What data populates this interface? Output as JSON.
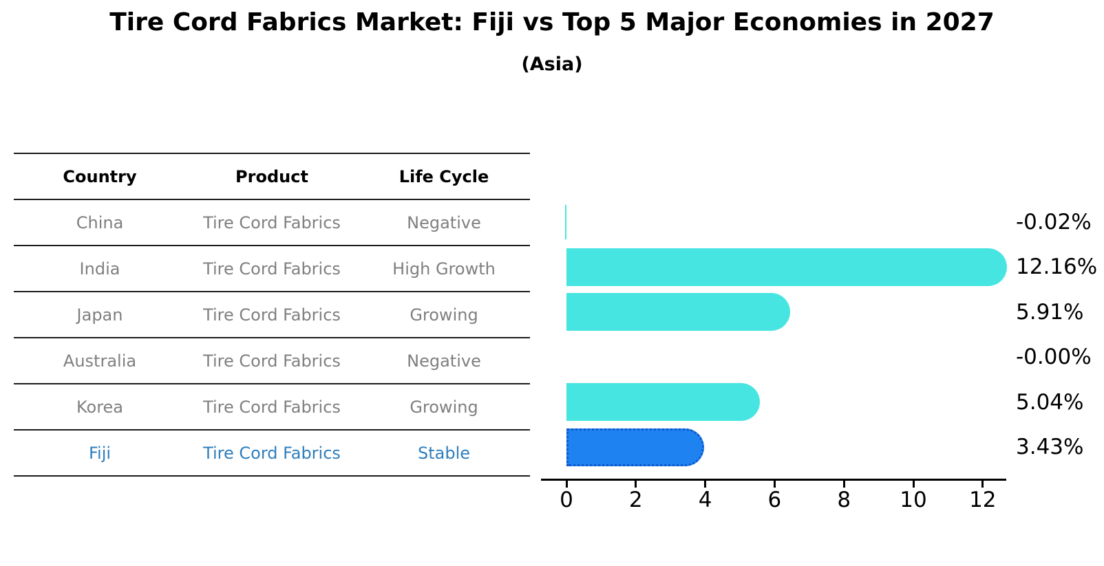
{
  "title": "Tire Cord Fabrics Market: Fiji vs Top 5 Major Economies in 2027",
  "subtitle": "(Asia)",
  "table": {
    "headers": [
      "Country",
      "Product",
      "Life Cycle"
    ],
    "rows": [
      {
        "country": "China",
        "product": "Tire Cord Fabrics",
        "life_cycle": "Negative",
        "highlight": false
      },
      {
        "country": "India",
        "product": "Tire Cord Fabrics",
        "life_cycle": "High Growth",
        "highlight": false
      },
      {
        "country": "Japan",
        "product": "Tire Cord Fabrics",
        "life_cycle": "Growing",
        "highlight": false
      },
      {
        "country": "Australia",
        "product": "Tire Cord Fabrics",
        "life_cycle": "Negative",
        "highlight": false
      },
      {
        "country": "Korea",
        "product": "Tire Cord Fabrics",
        "life_cycle": "Growing",
        "highlight": false
      },
      {
        "country": "Fiji",
        "product": "Tire Cord Fabrics",
        "life_cycle": "Stable",
        "highlight": true
      }
    ]
  },
  "chart_data": {
    "type": "bar",
    "orientation": "horizontal",
    "title": "Tire Cord Fabrics Market: Fiji vs Top 5 Major Economies in 2027",
    "subtitle": "(Asia)",
    "categories": [
      "China",
      "India",
      "Japan",
      "Australia",
      "Korea",
      "Fiji"
    ],
    "values": [
      -0.02,
      12.16,
      5.91,
      -0.0,
      5.04,
      3.43
    ],
    "value_labels": [
      "-0.02%",
      "12.16%",
      "5.91%",
      "-0.00%",
      "5.04%",
      "3.43%"
    ],
    "units": "percent",
    "x_ticks": [
      0,
      2,
      4,
      6,
      8,
      10,
      12
    ],
    "xlim": [
      -0.7,
      12.9
    ],
    "grid": false,
    "legend": "none",
    "highlight_index": 5,
    "colors": {
      "bar_default": "#47e5e2",
      "bar_highlight": "#1e82f0",
      "bar_highlight_border": "#1057c8",
      "highlight_text": "#2e7ebd",
      "table_text": "#7f7f7f",
      "axis": "#000000"
    }
  }
}
